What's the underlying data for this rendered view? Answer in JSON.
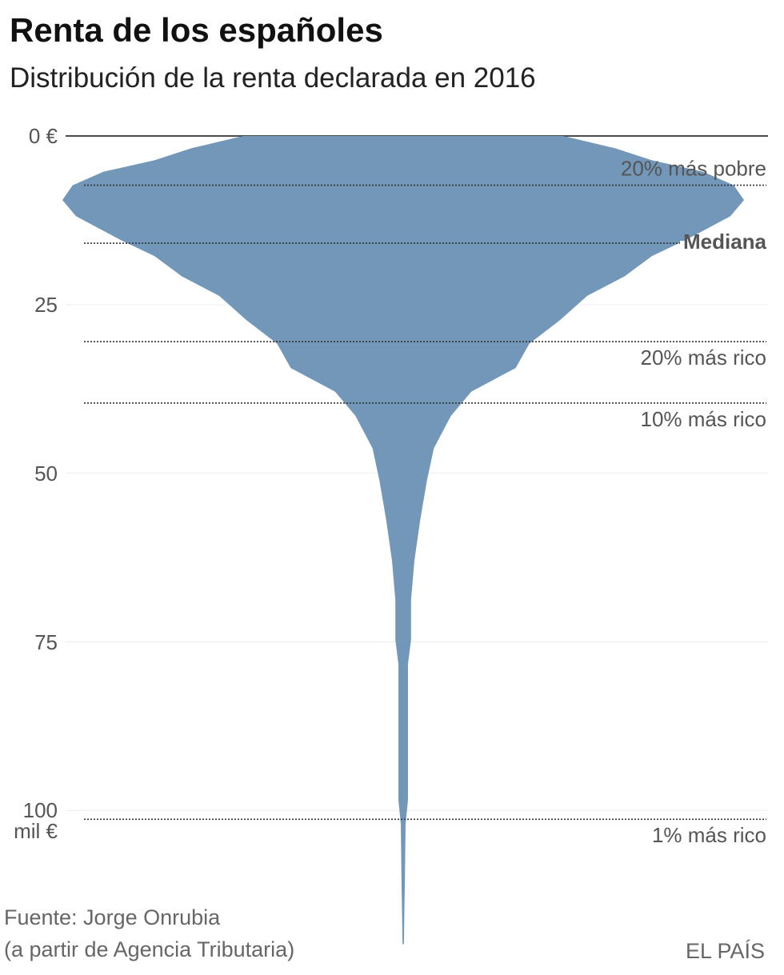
{
  "chart_data": {
    "type": "violin",
    "title": "Renta de los españoles",
    "subtitle": "Distribución de la renta declarada en 2016",
    "income": [
      0,
      1.8,
      3.6,
      5.3,
      7.3,
      9.5,
      11.9,
      15.4,
      17.8,
      20.8,
      23.7,
      27.3,
      30.8,
      34.4,
      37.9,
      41.5,
      46.3,
      51,
      56.9,
      62.9,
      68.8,
      74.7,
      78.3,
      86.6,
      98.5,
      102,
      110.3,
      119.8
    ],
    "density": [
      47,
      62,
      73,
      88,
      97,
      100,
      96,
      83,
      73,
      65,
      54,
      46,
      37,
      33,
      20,
      14,
      9,
      7,
      5,
      3.3,
      2.3,
      2.3,
      1.4,
      1.4,
      1.4,
      0.7,
      0.5,
      0.2
    ],
    "color": "#7397b8",
    "ylim": [
      0,
      120
    ],
    "xlim": [
      -100,
      100
    ],
    "yticks": [
      {
        "value": 0,
        "label": "0 €"
      },
      25,
      50,
      75,
      {
        "value": 100,
        "label": "100 mil €"
      }
    ],
    "grid": true,
    "reference_lines": [
      {
        "value": 7.3,
        "label": "20% más pobre",
        "label_position": "above",
        "bold": false
      },
      {
        "value": 15.9,
        "label": "Mediana",
        "label_position": "on",
        "bold": true
      },
      {
        "value": 30.5,
        "label": "20% más rico",
        "label_position": "below",
        "bold": false
      },
      {
        "value": 39.6,
        "label": "10% más rico",
        "label_position": "below",
        "bold": false
      },
      {
        "value": 101.3,
        "label": "1% más rico",
        "label_position": "below",
        "bold": false
      }
    ],
    "source": [
      "Fuente: Jorge Onrubia",
      "(a partir de Agencia Tributaria)"
    ],
    "credit": "EL PAÍS"
  }
}
